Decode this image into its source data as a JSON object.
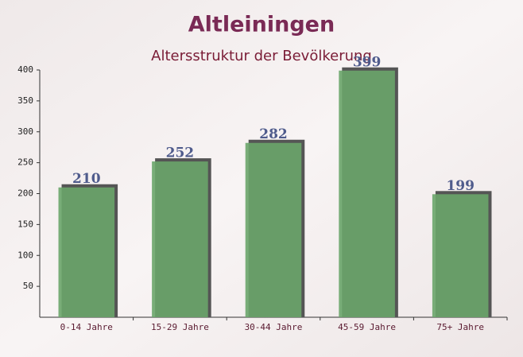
{
  "chart_data": {
    "type": "bar",
    "title": "Altleiningen",
    "subtitle": "Altersstruktur der Bevölkerung",
    "categories": [
      "0-14 Jahre",
      "15-29 Jahre",
      "30-44 Jahre",
      "45-59 Jahre",
      "75+ Jahre"
    ],
    "values": [
      210,
      252,
      282,
      399,
      199
    ],
    "color": "#6aa56a",
    "ylim": [
      0,
      400
    ],
    "yticks": [
      50,
      100,
      150,
      200,
      250,
      300,
      350,
      400
    ],
    "grid": false
  }
}
